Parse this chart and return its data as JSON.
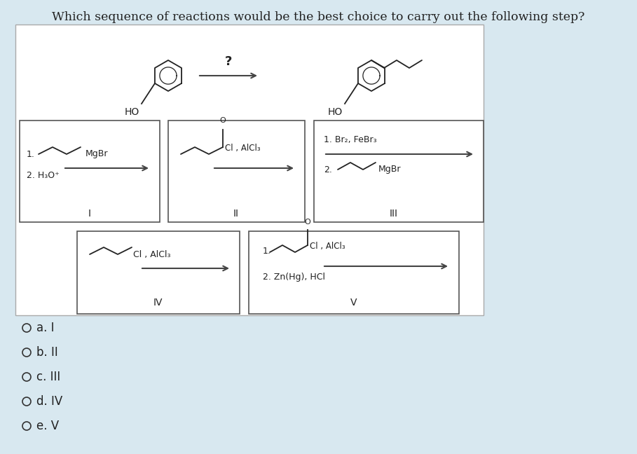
{
  "title": "Which sequence of reactions would be the best choice to carry out the following step?",
  "bg_color": "#d8e8f0",
  "white": "#ffffff",
  "dark": "#222222",
  "gray_box": "#c8d8e8",
  "title_fs": 12.5,
  "ans_fs": 12,
  "answers": [
    {
      "letter": "a",
      "label": "I"
    },
    {
      "letter": "b",
      "label": "II"
    },
    {
      "letter": "c",
      "label": "III"
    },
    {
      "letter": "d",
      "label": "IV"
    },
    {
      "letter": "e",
      "label": "V"
    }
  ]
}
